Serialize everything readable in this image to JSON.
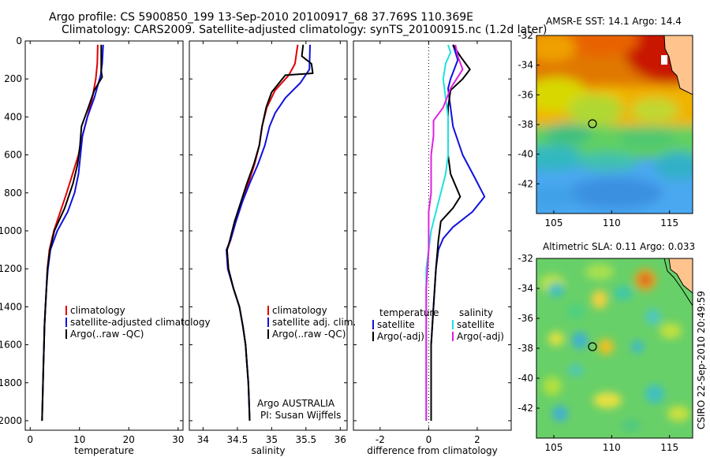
{
  "header": {
    "line1": "Argo profile: CS 5900850_199 13-Sep-2010 20100917_68 37.769S 110.369E",
    "line2": "Climatology: CARS2009. Satellite-adjusted climatology: synTS_20100915.nc (1.2d later)"
  },
  "credits": {
    "owner": "Argo AUSTRALIA",
    "pi": "PI: Susan Wijffels",
    "stamp": "CSIRO 22-Sep-2010 20:49:59"
  },
  "colors": {
    "black": "#000000",
    "red": "#e00000",
    "blue": "#1010e0",
    "cyan": "#20e0e0",
    "magenta": "#e020e0"
  },
  "chart_data": [
    {
      "type": "line",
      "xlabel": "temperature",
      "xlim": [
        -1,
        31
      ],
      "xticks": [
        0,
        10,
        20,
        30
      ],
      "ylim": [
        0,
        2050
      ],
      "yticks": [
        0,
        200,
        400,
        600,
        800,
        1000,
        1200,
        1400,
        1600,
        1800,
        2000
      ],
      "legend_position": "bottom-left",
      "series": [
        {
          "name": "climatology",
          "color": "red",
          "points": [
            [
              13.7,
              20
            ],
            [
              13.6,
              120
            ],
            [
              13.3,
              200
            ],
            [
              12.6,
              300
            ],
            [
              11.6,
              400
            ],
            [
              10.6,
              500
            ],
            [
              9.8,
              600
            ],
            [
              8.6,
              700
            ],
            [
              7.4,
              800
            ],
            [
              6.1,
              900
            ],
            [
              4.8,
              1000
            ],
            [
              3.9,
              1100
            ],
            [
              3.5,
              1200
            ],
            [
              3.3,
              1300
            ],
            [
              3.1,
              1400
            ],
            [
              2.9,
              1500
            ],
            [
              2.8,
              1600
            ],
            [
              2.7,
              1700
            ],
            [
              2.6,
              1800
            ],
            [
              2.5,
              1900
            ],
            [
              2.4,
              2000
            ]
          ]
        },
        {
          "name": "satellite-adjusted climatology",
          "color": "blue",
          "points": [
            [
              14.8,
              20
            ],
            [
              14.6,
              120
            ],
            [
              14.3,
              180
            ],
            [
              13.0,
              300
            ],
            [
              11.6,
              400
            ],
            [
              10.6,
              500
            ],
            [
              10.2,
              600
            ],
            [
              9.8,
              700
            ],
            [
              9.0,
              800
            ],
            [
              7.6,
              900
            ],
            [
              5.5,
              1000
            ],
            [
              4.1,
              1100
            ],
            [
              3.6,
              1200
            ],
            [
              3.3,
              1300
            ],
            [
              3.1,
              1400
            ],
            [
              2.9,
              1500
            ],
            [
              2.8,
              1600
            ],
            [
              2.7,
              1700
            ],
            [
              2.6,
              1800
            ],
            [
              2.5,
              1900
            ],
            [
              2.4,
              2000
            ]
          ]
        },
        {
          "name": "Argo(..raw -QC)",
          "color": "black",
          "points": [
            [
              14.4,
              20
            ],
            [
              14.4,
              160
            ],
            [
              14.6,
              190
            ],
            [
              13.0,
              260
            ],
            [
              11.8,
              350
            ],
            [
              10.4,
              450
            ],
            [
              10.1,
              550
            ],
            [
              9.6,
              650
            ],
            [
              8.7,
              750
            ],
            [
              7.0,
              880
            ],
            [
              4.9,
              1000
            ],
            [
              4.0,
              1100
            ],
            [
              3.5,
              1200
            ],
            [
              3.3,
              1300
            ],
            [
              3.1,
              1400
            ],
            [
              2.9,
              1500
            ],
            [
              2.8,
              1600
            ],
            [
              2.7,
              1700
            ],
            [
              2.6,
              1800
            ],
            [
              2.5,
              1900
            ],
            [
              2.4,
              2000
            ]
          ]
        }
      ],
      "legend": [
        "climatology",
        "satellite-adjusted climatology",
        "Argo(..raw -QC)"
      ]
    },
    {
      "type": "line",
      "xlabel": "salinity",
      "xlim": [
        33.8,
        36.1
      ],
      "xticks": [
        34,
        34.5,
        35,
        35.5,
        36
      ],
      "ylim": [
        0,
        2050
      ],
      "yticks": [
        0,
        200,
        400,
        600,
        800,
        1000,
        1200,
        1400,
        1600,
        1800,
        2000
      ],
      "legend_position": "bottom-center",
      "series": [
        {
          "name": "climatology",
          "color": "red",
          "points": [
            [
              35.38,
              20
            ],
            [
              35.34,
              120
            ],
            [
              35.25,
              180
            ],
            [
              35.05,
              260
            ],
            [
              34.93,
              350
            ],
            [
              34.86,
              450
            ],
            [
              34.82,
              550
            ],
            [
              34.75,
              650
            ],
            [
              34.66,
              750
            ],
            [
              34.57,
              850
            ],
            [
              34.48,
              950
            ],
            [
              34.4,
              1050
            ],
            [
              34.35,
              1100
            ],
            [
              34.37,
              1200
            ],
            [
              34.44,
              1300
            ],
            [
              34.53,
              1400
            ],
            [
              34.58,
              1500
            ],
            [
              34.62,
              1600
            ],
            [
              34.64,
              1700
            ],
            [
              34.66,
              1800
            ],
            [
              34.67,
              1900
            ],
            [
              34.68,
              2000
            ]
          ]
        },
        {
          "name": "satellite adj. clim.",
          "color": "blue",
          "points": [
            [
              35.56,
              20
            ],
            [
              35.55,
              150
            ],
            [
              35.42,
              220
            ],
            [
              35.2,
              300
            ],
            [
              35.05,
              380
            ],
            [
              34.97,
              450
            ],
            [
              34.9,
              550
            ],
            [
              34.8,
              650
            ],
            [
              34.68,
              750
            ],
            [
              34.57,
              850
            ],
            [
              34.48,
              950
            ],
            [
              34.4,
              1050
            ],
            [
              34.34,
              1100
            ],
            [
              34.36,
              1200
            ],
            [
              34.44,
              1300
            ],
            [
              34.53,
              1400
            ],
            [
              34.58,
              1500
            ],
            [
              34.62,
              1600
            ],
            [
              34.64,
              1700
            ],
            [
              34.66,
              1800
            ],
            [
              34.67,
              1900
            ],
            [
              34.68,
              2000
            ]
          ]
        },
        {
          "name": "Argo(..raw -QC)",
          "color": "black",
          "points": [
            [
              35.46,
              20
            ],
            [
              35.44,
              80
            ],
            [
              35.58,
              120
            ],
            [
              35.6,
              170
            ],
            [
              35.2,
              180
            ],
            [
              35.0,
              270
            ],
            [
              34.92,
              350
            ],
            [
              34.86,
              450
            ],
            [
              34.82,
              550
            ],
            [
              34.74,
              650
            ],
            [
              34.64,
              750
            ],
            [
              34.55,
              850
            ],
            [
              34.46,
              950
            ],
            [
              34.39,
              1050
            ],
            [
              34.35,
              1100
            ],
            [
              34.37,
              1200
            ],
            [
              34.44,
              1300
            ],
            [
              34.53,
              1400
            ],
            [
              34.58,
              1500
            ],
            [
              34.62,
              1600
            ],
            [
              34.64,
              1700
            ],
            [
              34.66,
              1800
            ],
            [
              34.67,
              1900
            ],
            [
              34.68,
              2000
            ]
          ]
        }
      ],
      "legend": [
        "climatology",
        "satellite adj. clim.",
        "Argo(..raw -QC)"
      ]
    },
    {
      "type": "line",
      "xlabel": "difference from climatology",
      "xlim": [
        -3.1,
        3.4
      ],
      "xticks": [
        -2,
        0,
        2
      ],
      "ylim": [
        0,
        2050
      ],
      "yticks": [
        0,
        200,
        400,
        600,
        800,
        1000,
        1200,
        1400,
        1600,
        1800,
        2000
      ],
      "zero_line": "dotted",
      "legend_position": "bottom-center",
      "series": [
        {
          "name": "temperature satellite",
          "color": "blue",
          "points": [
            [
              1.0,
              20
            ],
            [
              1.2,
              100
            ],
            [
              0.9,
              200
            ],
            [
              0.8,
              250
            ],
            [
              0.9,
              350
            ],
            [
              1.0,
              450
            ],
            [
              1.4,
              600
            ],
            [
              1.9,
              720
            ],
            [
              2.3,
              820
            ],
            [
              1.8,
              900
            ],
            [
              1.0,
              980
            ],
            [
              0.6,
              1040
            ],
            [
              0.4,
              1100
            ],
            [
              0.3,
              1200
            ],
            [
              0.2,
              1400
            ],
            [
              0.1,
              1600
            ],
            [
              0.1,
              1800
            ],
            [
              0.1,
              2000
            ]
          ]
        },
        {
          "name": "temperature Argo(-adj)",
          "color": "black",
          "points": [
            [
              1.0,
              20
            ],
            [
              1.3,
              80
            ],
            [
              1.7,
              150
            ],
            [
              1.4,
              200
            ],
            [
              0.9,
              260
            ],
            [
              0.8,
              350
            ],
            [
              0.8,
              500
            ],
            [
              0.8,
              600
            ],
            [
              0.9,
              700
            ],
            [
              1.3,
              820
            ],
            [
              1.0,
              880
            ],
            [
              0.5,
              950
            ],
            [
              0.4,
              1050
            ],
            [
              0.3,
              1200
            ],
            [
              0.2,
              1400
            ],
            [
              0.1,
              1600
            ],
            [
              0.1,
              1800
            ],
            [
              0.1,
              2000
            ]
          ]
        },
        {
          "name": "salinity satellite",
          "color": "cyan",
          "points": [
            [
              0.8,
              20
            ],
            [
              0.9,
              60
            ],
            [
              0.7,
              120
            ],
            [
              0.6,
              200
            ],
            [
              0.7,
              300
            ],
            [
              0.8,
              400
            ],
            [
              0.8,
              500
            ],
            [
              0.8,
              600
            ],
            [
              0.7,
              700
            ],
            [
              0.5,
              800
            ],
            [
              0.3,
              900
            ],
            [
              0.1,
              1000
            ],
            [
              0.0,
              1100
            ],
            [
              -0.1,
              1200
            ],
            [
              -0.1,
              1400
            ],
            [
              -0.1,
              1600
            ],
            [
              -0.1,
              1800
            ],
            [
              -0.1,
              2000
            ]
          ]
        },
        {
          "name": "salinity Argo(-adj)",
          "color": "magenta",
          "points": [
            [
              1.1,
              20
            ],
            [
              1.2,
              80
            ],
            [
              1.4,
              150
            ],
            [
              0.9,
              250
            ],
            [
              0.6,
              350
            ],
            [
              0.2,
              420
            ],
            [
              0.2,
              500
            ],
            [
              0.1,
              600
            ],
            [
              0.1,
              700
            ],
            [
              0.1,
              800
            ],
            [
              0.0,
              900
            ],
            [
              0.0,
              1000
            ],
            [
              0.0,
              1100
            ],
            [
              -0.1,
              1300
            ],
            [
              -0.1,
              1500
            ],
            [
              -0.1,
              1700
            ],
            [
              -0.1,
              1900
            ],
            [
              -0.1,
              2000
            ]
          ]
        }
      ],
      "legend": {
        "temperature_header": "temperature",
        "salinity_header": "salinity",
        "temperature": [
          "satellite",
          "Argo(-adj)"
        ],
        "salinity": [
          "satellite",
          "Argo(-adj)"
        ]
      }
    },
    {
      "type": "heatmap",
      "title": "AMSR-E SST: 14.1  Argo: 14.4",
      "xlim": [
        103.5,
        117
      ],
      "ylim": [
        -44,
        -32
      ],
      "xticks": [
        105,
        110,
        115
      ],
      "yticks": [
        -32,
        -34,
        -36,
        -38,
        -40,
        -42
      ],
      "profile_location": [
        110.37,
        -37.77
      ]
    },
    {
      "type": "heatmap",
      "title": "Altimetric SLA: 0.11  Argo: 0.033",
      "xlim": [
        103.5,
        117
      ],
      "ylim": [
        -44,
        -32
      ],
      "xticks": [
        105,
        110,
        115
      ],
      "yticks": [
        -32,
        -34,
        -36,
        -38,
        -40,
        -42
      ],
      "profile_location": [
        110.37,
        -37.77
      ]
    }
  ]
}
